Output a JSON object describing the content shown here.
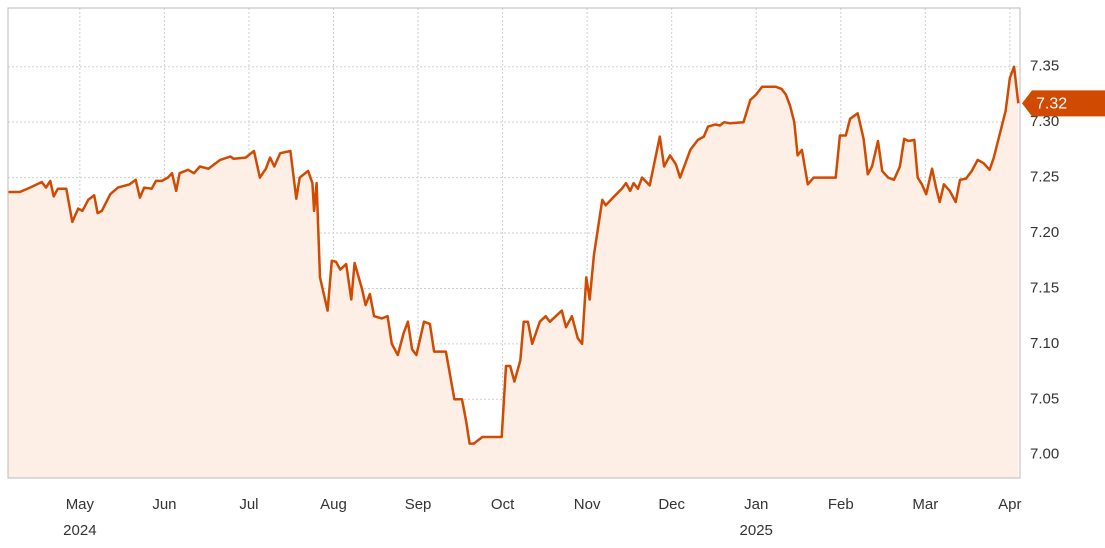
{
  "chart_data": {
    "type": "line",
    "x": [
      -0.85,
      -0.71,
      -0.59,
      -0.45,
      -0.4,
      -0.35,
      -0.31,
      -0.26,
      -0.16,
      -0.09,
      -0.02,
      0.03,
      0.1,
      0.17,
      0.21,
      0.26,
      0.36,
      0.45,
      0.59,
      0.66,
      0.71,
      0.76,
      0.85,
      0.9,
      0.97,
      1.04,
      1.09,
      1.14,
      1.18,
      1.28,
      1.35,
      1.42,
      1.52,
      1.66,
      1.78,
      1.82,
      1.96,
      2.06,
      2.13,
      2.2,
      2.25,
      2.3,
      2.37,
      2.49,
      2.56,
      2.6,
      2.7,
      2.75,
      2.77,
      2.8,
      2.84,
      2.93,
      2.98,
      3.03,
      3.08,
      3.15,
      3.21,
      3.25,
      3.34,
      3.38,
      3.43,
      3.48,
      3.57,
      3.64,
      3.69,
      3.76,
      3.83,
      3.88,
      3.93,
      3.98,
      4.07,
      4.14,
      4.19,
      4.33,
      4.43,
      4.52,
      4.57,
      4.61,
      4.66,
      4.76,
      4.99,
      5.04,
      5.09,
      5.14,
      5.21,
      5.25,
      5.3,
      5.35,
      5.44,
      5.51,
      5.56,
      5.63,
      5.7,
      5.75,
      5.82,
      5.89,
      5.94,
      5.99,
      6.03,
      6.08,
      6.18,
      6.22,
      6.32,
      6.41,
      6.46,
      6.51,
      6.55,
      6.6,
      6.65,
      6.74,
      6.86,
      6.91,
      6.98,
      7.05,
      7.1,
      7.22,
      7.31,
      7.38,
      7.43,
      7.52,
      7.57,
      7.62,
      7.69,
      7.85,
      7.93,
      8.0,
      8.07,
      8.23,
      8.3,
      8.35,
      8.4,
      8.45,
      8.49,
      8.54,
      8.61,
      8.68,
      8.94,
      8.99,
      9.06,
      9.11,
      9.2,
      9.27,
      9.32,
      9.37,
      9.44,
      9.49,
      9.56,
      9.63,
      9.7,
      9.75,
      9.8,
      9.87,
      9.91,
      9.96,
      10.01,
      10.08,
      10.13,
      10.17,
      10.22,
      10.29,
      10.36,
      10.41,
      10.48,
      10.55,
      10.62,
      10.69,
      10.76,
      10.81,
      10.86,
      10.95,
      11.0,
      11.05,
      11.1
    ],
    "series": [
      {
        "color": "#d04a02",
        "fill": "#fdeee6",
        "values": [
          7.237,
          7.237,
          7.241,
          7.246,
          7.241,
          7.247,
          7.233,
          7.24,
          7.24,
          7.21,
          7.222,
          7.22,
          7.23,
          7.234,
          7.218,
          7.22,
          7.235,
          7.241,
          7.244,
          7.248,
          7.232,
          7.241,
          7.24,
          7.247,
          7.247,
          7.25,
          7.254,
          7.238,
          7.254,
          7.257,
          7.254,
          7.26,
          7.258,
          7.266,
          7.269,
          7.267,
          7.268,
          7.274,
          7.25,
          7.258,
          7.268,
          7.26,
          7.272,
          7.274,
          7.231,
          7.25,
          7.256,
          7.245,
          7.22,
          7.245,
          7.16,
          7.13,
          7.175,
          7.174,
          7.167,
          7.172,
          7.14,
          7.173,
          7.149,
          7.135,
          7.145,
          7.125,
          7.123,
          7.125,
          7.1,
          7.09,
          7.11,
          7.12,
          7.095,
          7.09,
          7.12,
          7.118,
          7.093,
          7.093,
          7.05,
          7.05,
          7.03,
          7.01,
          7.01,
          7.016,
          7.016,
          7.08,
          7.08,
          7.066,
          7.085,
          7.12,
          7.12,
          7.1,
          7.12,
          7.125,
          7.12,
          7.125,
          7.13,
          7.115,
          7.125,
          7.105,
          7.1,
          7.16,
          7.14,
          7.18,
          7.23,
          7.225,
          7.233,
          7.24,
          7.245,
          7.238,
          7.245,
          7.24,
          7.25,
          7.243,
          7.287,
          7.26,
          7.27,
          7.262,
          7.25,
          7.275,
          7.284,
          7.287,
          7.296,
          7.298,
          7.297,
          7.3,
          7.299,
          7.3,
          7.32,
          7.325,
          7.332,
          7.332,
          7.33,
          7.325,
          7.315,
          7.3,
          7.27,
          7.275,
          7.244,
          7.25,
          7.25,
          7.288,
          7.288,
          7.303,
          7.308,
          7.285,
          7.253,
          7.26,
          7.283,
          7.256,
          7.25,
          7.248,
          7.26,
          7.285,
          7.283,
          7.284,
          7.25,
          7.244,
          7.235,
          7.258,
          7.24,
          7.228,
          7.244,
          7.238,
          7.228,
          7.248,
          7.249,
          7.256,
          7.266,
          7.263,
          7.257,
          7.268,
          7.283,
          7.31,
          7.34,
          7.35,
          7.317
        ]
      }
    ],
    "last_label": "7.32",
    "xlim": [
      -0.85,
      11.12
    ],
    "xticks": [
      {
        "value": 0,
        "label": "May"
      },
      {
        "value": 1,
        "label": "Jun"
      },
      {
        "value": 2,
        "label": "Jul"
      },
      {
        "value": 3,
        "label": "Aug"
      },
      {
        "value": 4,
        "label": "Sep"
      },
      {
        "value": 5,
        "label": "Oct"
      },
      {
        "value": 6,
        "label": "Nov"
      },
      {
        "value": 7,
        "label": "Dec"
      },
      {
        "value": 8,
        "label": "Jan"
      },
      {
        "value": 9,
        "label": "Feb"
      },
      {
        "value": 10,
        "label": "Mar"
      },
      {
        "value": 11,
        "label": "Apr"
      }
    ],
    "year_labels": [
      {
        "value": 0,
        "label": "2024"
      },
      {
        "value": 8,
        "label": "2025"
      }
    ],
    "ylim": [
      6.979,
      7.403
    ],
    "yticks": [
      {
        "value": 7.0,
        "label": "7.00"
      },
      7.05,
      {
        "value": 7.1,
        "label": "7.10"
      },
      7.15,
      {
        "value": 7.2,
        "label": "7.20"
      },
      7.25,
      {
        "value": 7.3,
        "label": "7.30"
      },
      7.35
    ],
    "grid": true
  }
}
